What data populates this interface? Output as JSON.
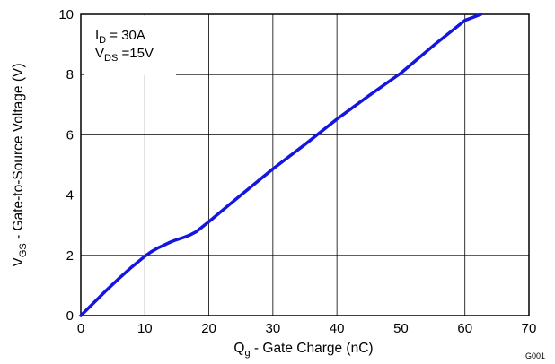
{
  "chart_data": {
    "type": "line",
    "xlabel": {
      "main": "Q",
      "sub": "g",
      "rest": " - Gate Charge  (nC)"
    },
    "ylabel": {
      "main": "V",
      "sub": "GS",
      "rest": " - Gate-to-Source Voltage (V)"
    },
    "xlim": [
      0,
      70
    ],
    "ylim": [
      0,
      10
    ],
    "xticks": [
      0,
      10,
      20,
      30,
      40,
      50,
      60,
      70
    ],
    "yticks": [
      0,
      2,
      4,
      6,
      8,
      10
    ],
    "grid": true,
    "annotations": [
      {
        "main": "I",
        "sub": "D",
        "rest": " = 30A"
      },
      {
        "main": "V",
        "sub": "DS",
        "rest": " =15V"
      }
    ],
    "figure_code": "G001",
    "series": [
      {
        "color": "#1515e0",
        "x": [
          0,
          2,
          4,
          6,
          8,
          10,
          11,
          12,
          13,
          14,
          15,
          16,
          17,
          18,
          20,
          25,
          30,
          35,
          40,
          45,
          50,
          55,
          60,
          62.5
        ],
        "y": [
          0,
          0.42,
          0.84,
          1.24,
          1.62,
          1.97,
          2.12,
          2.24,
          2.34,
          2.44,
          2.52,
          2.59,
          2.67,
          2.78,
          3.12,
          4.0,
          4.87,
          5.68,
          6.52,
          7.3,
          8.05,
          8.95,
          9.8,
          10.0
        ]
      }
    ]
  }
}
